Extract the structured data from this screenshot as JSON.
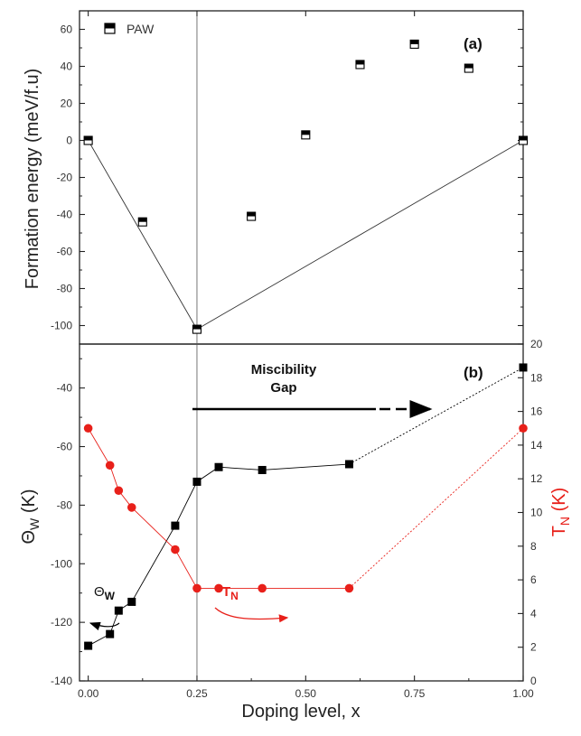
{
  "chart_data": [
    {
      "panel": "(a)",
      "type": "scatter",
      "ylabel": "Formation energy (meV/f.u)",
      "ylim": [
        -110,
        70
      ],
      "xlim": [
        -0.02,
        1.0
      ],
      "yticks": [
        -100,
        -80,
        -60,
        -40,
        -20,
        0,
        20,
        40,
        60
      ],
      "legend": {
        "label": "PAW",
        "placement": "top-left"
      },
      "series": [
        {
          "name": "PAW",
          "marker": "half-filled-square",
          "x": [
            0,
            0.125,
            0.25,
            0.375,
            0.5,
            0.625,
            0.75,
            0.875,
            1.0
          ],
          "y": [
            0,
            -44,
            -102,
            -41,
            3,
            41,
            52,
            39,
            0
          ]
        }
      ],
      "hull": {
        "x": [
          0,
          0.25,
          1.0
        ],
        "y": [
          0,
          -102,
          0
        ]
      }
    },
    {
      "panel": "(b)",
      "type": "line",
      "xlabel": "Doping level, x",
      "ylabel_left": "ΘW (K)",
      "ylabel_right": "TN (K)",
      "ylim_left": [
        -140,
        -25
      ],
      "ylim_right": [
        0,
        20
      ],
      "xlim": [
        -0.02,
        1.0
      ],
      "xticks": [
        0.0,
        0.25,
        0.5,
        0.75,
        1.0
      ],
      "xtick_labels": [
        "0.00",
        "0.25",
        "0.50",
        "0.75",
        "1.00"
      ],
      "yticks_left": [
        -140,
        -120,
        -100,
        -80,
        -60,
        -40
      ],
      "yticks_right": [
        0,
        2,
        4,
        6,
        8,
        10,
        12,
        14,
        16,
        18,
        20
      ],
      "series": [
        {
          "name": "ΘW",
          "axis": "left",
          "color": "#000000",
          "marker": "square",
          "x": [
            0,
            0.05,
            0.07,
            0.1,
            0.2,
            0.25,
            0.3,
            0.4,
            0.6,
            1.0
          ],
          "y": [
            -128,
            -124,
            -116,
            -113,
            -87,
            -72,
            -67,
            -68,
            -66,
            -33
          ],
          "dashed_from_index": 8
        },
        {
          "name": "TN",
          "axis": "right",
          "color": "#e8201a",
          "marker": "circle",
          "x": [
            0,
            0.05,
            0.07,
            0.1,
            0.2,
            0.25,
            0.3,
            0.4,
            0.6,
            1.0
          ],
          "y": [
            15,
            12.8,
            11.3,
            10.3,
            7.8,
            5.5,
            5.5,
            5.5,
            5.5,
            15
          ],
          "dashed_from_index": 8
        }
      ],
      "annotations": {
        "miscibility": [
          "Miscibility",
          "Gap"
        ],
        "theta_label": "Θ",
        "theta_sub": "W",
        "tn_label": "T",
        "tn_sub": "N",
        "left_title_main": "Θ",
        "left_title_sub": "W",
        "left_title_unit": " (K)",
        "right_title_main": "T",
        "right_title_sub": "N",
        "right_title_unit": " (K)"
      }
    }
  ],
  "colors": {
    "red": "#e8201a",
    "black": "#000000"
  },
  "xaxis_title": "Doping level, x",
  "vline_x": 0.25
}
